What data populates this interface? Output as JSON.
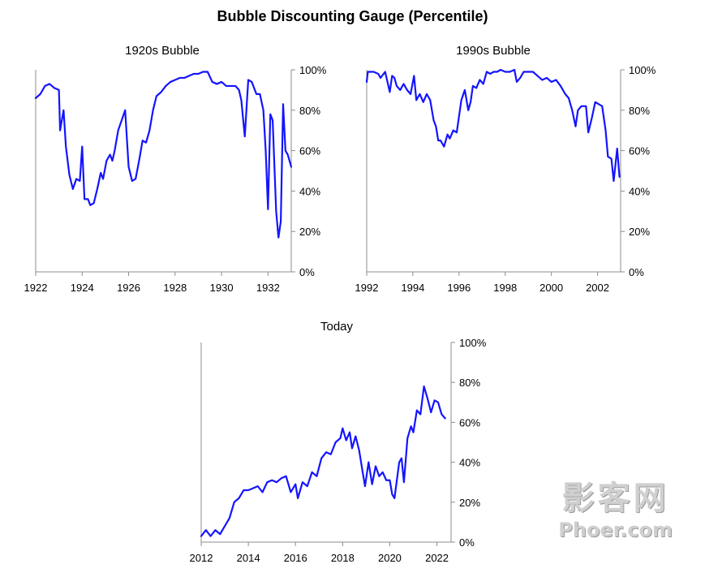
{
  "page": {
    "title": "Bubble Discounting Gauge (Percentile)"
  },
  "watermark": {
    "cn": "影客网",
    "en": "Phoer.com"
  },
  "colors": {
    "line": "#1414ff",
    "axis": "#8c8c8c"
  },
  "chart_data": [
    {
      "type": "line",
      "title": "1920s Bubble",
      "xticks": [
        "1922",
        "1924",
        "1926",
        "1928",
        "1930",
        "1932"
      ],
      "yticks": [
        "0%",
        "20%",
        "40%",
        "60%",
        "80%",
        "100%"
      ],
      "xlim": [
        1922,
        1933
      ],
      "ylim": [
        0,
        100
      ],
      "y_axis_side": "right",
      "series": [
        {
          "x": [
            1922.0,
            1922.2,
            1922.4,
            1922.6,
            1922.8,
            1923.0,
            1923.05,
            1923.2,
            1923.3,
            1923.45,
            1923.6,
            1923.75,
            1923.9,
            1924.0,
            1924.1,
            1924.25,
            1924.35,
            1924.5,
            1924.65,
            1924.8,
            1924.9,
            1925.05,
            1925.2,
            1925.3,
            1925.4,
            1925.55,
            1925.7,
            1925.85,
            1926.0,
            1926.15,
            1926.3,
            1926.45,
            1926.6,
            1926.75,
            1926.9,
            1927.05,
            1927.2,
            1927.4,
            1927.6,
            1927.8,
            1928.0,
            1928.2,
            1928.4,
            1928.6,
            1928.8,
            1929.0,
            1929.2,
            1929.4,
            1929.6,
            1929.8,
            1930.0,
            1930.2,
            1930.4,
            1930.6,
            1930.75,
            1930.85,
            1931.0,
            1931.15,
            1931.3,
            1931.5,
            1931.65,
            1931.8,
            1931.9,
            1932.0,
            1932.1,
            1932.2,
            1932.35,
            1932.45,
            1932.55,
            1932.65,
            1932.75,
            1932.85,
            1933.0
          ],
          "y": [
            86,
            88,
            92,
            93,
            91,
            90,
            70,
            80,
            62,
            48,
            41,
            46,
            45,
            62,
            36,
            36,
            33,
            34,
            41,
            49,
            46,
            55,
            58,
            55,
            60,
            70,
            75,
            80,
            52,
            45,
            46,
            55,
            65,
            64,
            70,
            80,
            87,
            89,
            92,
            94,
            95,
            96,
            96,
            97,
            98,
            98,
            99,
            99,
            94,
            93,
            94,
            92,
            92,
            92,
            90,
            85,
            67,
            95,
            94,
            88,
            88,
            80,
            60,
            31,
            78,
            75,
            30,
            17,
            25,
            83,
            60,
            58,
            52
          ]
        }
      ]
    },
    {
      "type": "line",
      "title": "1990s Bubble",
      "xticks": [
        "1992",
        "1994",
        "1996",
        "1998",
        "2000",
        "2002"
      ],
      "yticks": [
        "0%",
        "20%",
        "40%",
        "60%",
        "80%",
        "100%"
      ],
      "xlim": [
        1992,
        2003
      ],
      "ylim": [
        0,
        100
      ],
      "y_axis_side": "right",
      "series": [
        {
          "x": [
            1992.0,
            1992.05,
            1992.3,
            1992.5,
            1992.6,
            1992.8,
            1993.0,
            1993.1,
            1993.2,
            1993.3,
            1993.45,
            1993.6,
            1993.75,
            1993.9,
            1994.05,
            1994.15,
            1994.3,
            1994.45,
            1994.6,
            1994.75,
            1994.9,
            1995.0,
            1995.1,
            1995.2,
            1995.35,
            1995.5,
            1995.6,
            1995.75,
            1995.9,
            1996.0,
            1996.1,
            1996.25,
            1996.4,
            1996.5,
            1996.6,
            1996.75,
            1996.9,
            1997.05,
            1997.2,
            1997.35,
            1997.5,
            1997.65,
            1997.8,
            1998.0,
            1998.2,
            1998.4,
            1998.5,
            1998.65,
            1998.8,
            1999.0,
            1999.2,
            1999.4,
            1999.6,
            1999.8,
            2000.0,
            2000.2,
            2000.4,
            2000.6,
            2000.75,
            2000.9,
            2001.05,
            2001.15,
            2001.3,
            2001.5,
            2001.6,
            2001.75,
            2001.9,
            2002.05,
            2002.2,
            2002.35,
            2002.45,
            2002.6,
            2002.7,
            2002.85,
            2002.95
          ],
          "y": [
            94,
            99,
            99,
            98,
            96,
            99,
            89,
            97,
            96,
            92,
            90,
            93,
            90,
            88,
            97,
            85,
            88,
            84,
            88,
            85,
            75,
            72,
            65,
            65,
            62,
            68,
            66,
            70,
            69,
            77,
            85,
            90,
            80,
            84,
            92,
            91,
            95,
            93,
            99,
            98,
            99,
            99,
            100,
            99,
            99,
            100,
            94,
            96,
            99,
            99,
            99,
            97,
            95,
            96,
            94,
            95,
            92,
            88,
            86,
            80,
            72,
            80,
            82,
            82,
            69,
            76,
            84,
            83,
            82,
            70,
            57,
            56,
            45,
            61,
            47
          ]
        }
      ]
    },
    {
      "type": "line",
      "title": "Today",
      "xticks": [
        "2012",
        "2014",
        "2016",
        "2018",
        "2020",
        "2022"
      ],
      "yticks": [
        "0%",
        "20%",
        "40%",
        "60%",
        "80%",
        "100%"
      ],
      "xlim": [
        2012,
        2022.6
      ],
      "ylim": [
        0,
        100
      ],
      "y_axis_side": "right",
      "series": [
        {
          "x": [
            2012.0,
            2012.2,
            2012.4,
            2012.6,
            2012.8,
            2013.0,
            2013.2,
            2013.4,
            2013.6,
            2013.8,
            2014.0,
            2014.2,
            2014.4,
            2014.6,
            2014.8,
            2015.0,
            2015.2,
            2015.4,
            2015.6,
            2015.8,
            2016.0,
            2016.1,
            2016.3,
            2016.5,
            2016.7,
            2016.9,
            2017.1,
            2017.3,
            2017.5,
            2017.7,
            2017.9,
            2018.0,
            2018.15,
            2018.3,
            2018.4,
            2018.55,
            2018.7,
            2018.85,
            2018.95,
            2019.1,
            2019.25,
            2019.4,
            2019.55,
            2019.7,
            2019.85,
            2020.0,
            2020.1,
            2020.2,
            2020.4,
            2020.5,
            2020.6,
            2020.75,
            2020.9,
            2021.0,
            2021.15,
            2021.3,
            2021.45,
            2021.6,
            2021.75,
            2021.9,
            2022.05,
            2022.2,
            2022.35
          ],
          "y": [
            3,
            6,
            3,
            6,
            4,
            8,
            12,
            20,
            22,
            26,
            26,
            27,
            28,
            25,
            30,
            31,
            30,
            32,
            33,
            25,
            29,
            22,
            30,
            28,
            35,
            33,
            42,
            45,
            44,
            50,
            52,
            57,
            51,
            55,
            47,
            53,
            46,
            35,
            28,
            40,
            29,
            38,
            33,
            35,
            31,
            31,
            24,
            22,
            40,
            42,
            30,
            52,
            58,
            55,
            66,
            64,
            78,
            72,
            65,
            71,
            70,
            64,
            62
          ]
        }
      ]
    }
  ]
}
